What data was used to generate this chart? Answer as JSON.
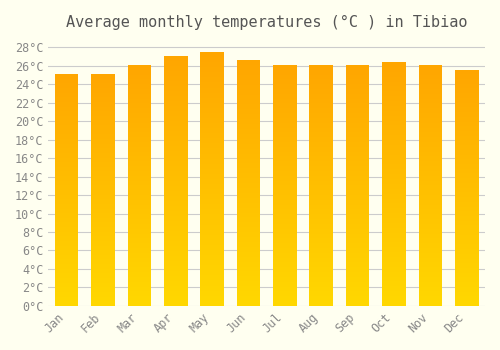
{
  "title": "Average monthly temperatures (°C ) in Tibiao",
  "months": [
    "Jan",
    "Feb",
    "Mar",
    "Apr",
    "May",
    "Jun",
    "Jul",
    "Aug",
    "Sep",
    "Oct",
    "Nov",
    "Dec"
  ],
  "values": [
    25.1,
    25.1,
    26.1,
    27.1,
    27.5,
    26.6,
    26.1,
    26.1,
    26.1,
    26.4,
    26.1,
    25.6
  ],
  "bar_color_top": "#FFA500",
  "bar_color_bottom": "#FFD700",
  "background_color": "#FFFFF0",
  "grid_color": "#cccccc",
  "ylim": [
    0,
    29
  ],
  "yticks": [
    0,
    2,
    4,
    6,
    8,
    10,
    12,
    14,
    16,
    18,
    20,
    22,
    24,
    26,
    28
  ],
  "title_fontsize": 11,
  "tick_fontsize": 8.5,
  "title_color": "#555555",
  "tick_color": "#888888"
}
